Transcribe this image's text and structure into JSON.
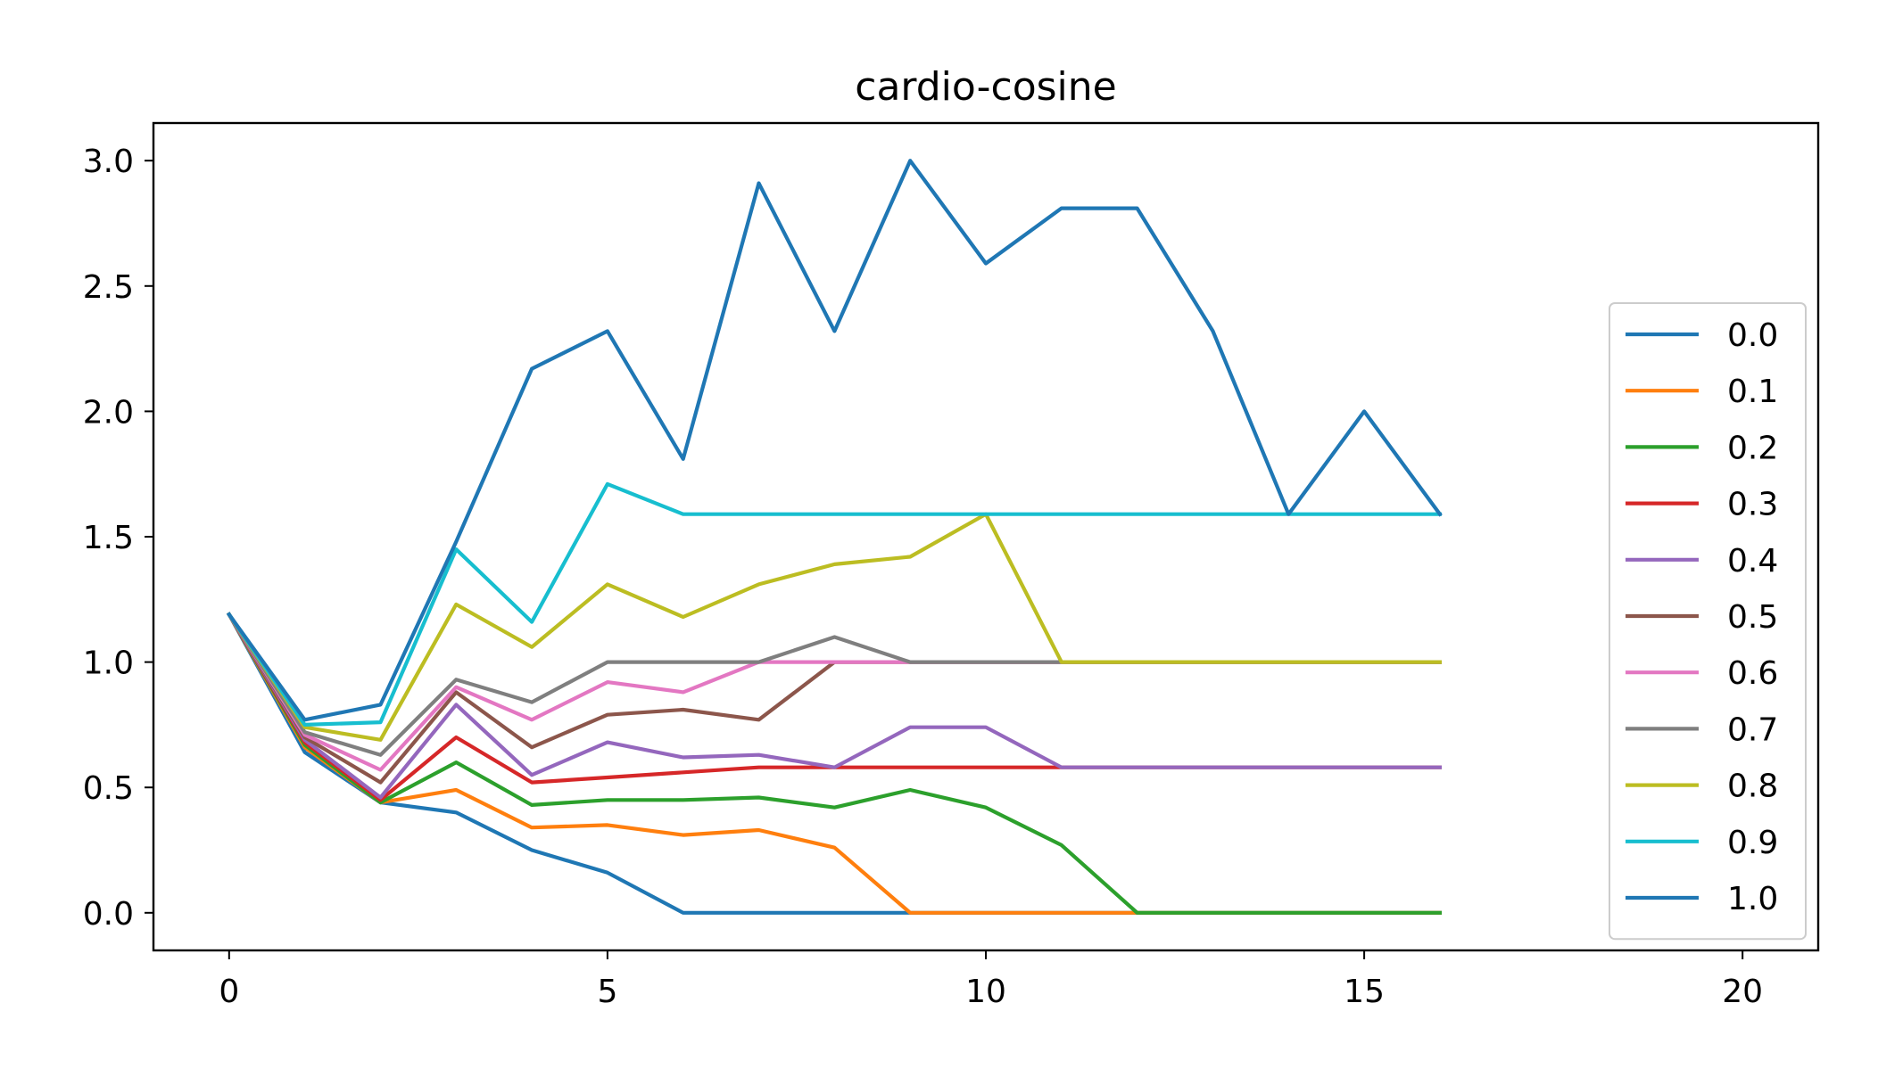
{
  "chart_data": {
    "type": "line",
    "title": "cardio-cosine",
    "xlabel": "",
    "ylabel": "",
    "xlim": [
      -1,
      21
    ],
    "ylim": [
      -0.15,
      3.15
    ],
    "xticks": [
      0,
      5,
      10,
      15,
      20
    ],
    "xtick_labels": [
      "0",
      "5",
      "10",
      "15",
      "20"
    ],
    "yticks": [
      0.0,
      0.5,
      1.0,
      1.5,
      2.0,
      2.5,
      3.0
    ],
    "ytick_labels": [
      "0.0",
      "0.5",
      "1.0",
      "1.5",
      "2.0",
      "2.5",
      "3.0"
    ],
    "grid": false,
    "legend_position": "center-right",
    "x": [
      0,
      1,
      2,
      3,
      4,
      5,
      6,
      7,
      8,
      9,
      10,
      11,
      12,
      13,
      14,
      15,
      16
    ],
    "series": [
      {
        "name": "0.0",
        "color": "#1f77b4",
        "values": [
          1.19,
          0.64,
          0.44,
          0.4,
          0.25,
          0.16,
          0.0,
          0.0,
          0.0,
          0.0,
          0.0,
          0.0,
          0.0,
          0.0,
          0.0,
          0.0,
          0.0
        ]
      },
      {
        "name": "0.1",
        "color": "#ff7f0e",
        "values": [
          1.19,
          0.66,
          0.44,
          0.49,
          0.34,
          0.35,
          0.31,
          0.33,
          0.26,
          0.0,
          0.0,
          0.0,
          0.0,
          0.0,
          0.0,
          0.0,
          0.0
        ]
      },
      {
        "name": "0.2",
        "color": "#2ca02c",
        "values": [
          1.19,
          0.67,
          0.44,
          0.6,
          0.43,
          0.45,
          0.45,
          0.46,
          0.42,
          0.49,
          0.42,
          0.27,
          0.0,
          0.0,
          0.0,
          0.0,
          0.0
        ]
      },
      {
        "name": "0.3",
        "color": "#d62728",
        "values": [
          1.19,
          0.68,
          0.45,
          0.7,
          0.52,
          0.54,
          0.56,
          0.58,
          0.58,
          0.58,
          0.58,
          0.58,
          0.58,
          0.58,
          0.58,
          0.58,
          0.58
        ]
      },
      {
        "name": "0.4",
        "color": "#9467bd",
        "values": [
          1.19,
          0.69,
          0.46,
          0.83,
          0.55,
          0.68,
          0.62,
          0.63,
          0.58,
          0.74,
          0.74,
          0.58,
          0.58,
          0.58,
          0.58,
          0.58,
          0.58
        ]
      },
      {
        "name": "0.5",
        "color": "#8c564b",
        "values": [
          1.19,
          0.7,
          0.52,
          0.88,
          0.66,
          0.79,
          0.81,
          0.77,
          1.0,
          1.0,
          1.0,
          1.0,
          1.0,
          1.0,
          1.0,
          1.0,
          1.0
        ]
      },
      {
        "name": "0.6",
        "color": "#e377c2",
        "values": [
          1.19,
          0.71,
          0.57,
          0.9,
          0.77,
          0.92,
          0.88,
          1.0,
          1.0,
          1.0,
          1.0,
          1.0,
          1.0,
          1.0,
          1.0,
          1.0,
          1.0
        ]
      },
      {
        "name": "0.7",
        "color": "#7f7f7f",
        "values": [
          1.19,
          0.72,
          0.63,
          0.93,
          0.84,
          1.0,
          1.0,
          1.0,
          1.1,
          1.0,
          1.0,
          1.0,
          1.0,
          1.0,
          1.0,
          1.0,
          1.0
        ]
      },
      {
        "name": "0.8",
        "color": "#bcbd22",
        "values": [
          1.19,
          0.74,
          0.69,
          1.23,
          1.06,
          1.31,
          1.18,
          1.31,
          1.39,
          1.42,
          1.59,
          1.0,
          1.0,
          1.0,
          1.0,
          1.0,
          1.0
        ]
      },
      {
        "name": "0.9",
        "color": "#17becf",
        "values": [
          1.19,
          0.75,
          0.76,
          1.45,
          1.16,
          1.71,
          1.59,
          1.59,
          1.59,
          1.59,
          1.59,
          1.59,
          1.59,
          1.59,
          1.59,
          1.59,
          1.59
        ]
      },
      {
        "name": "1.0",
        "color": "#1f77b4",
        "values": [
          1.19,
          0.77,
          0.83,
          1.48,
          2.17,
          2.32,
          1.81,
          2.91,
          2.32,
          3.0,
          2.59,
          2.81,
          2.81,
          2.32,
          1.59,
          2.0,
          1.59
        ]
      }
    ]
  }
}
